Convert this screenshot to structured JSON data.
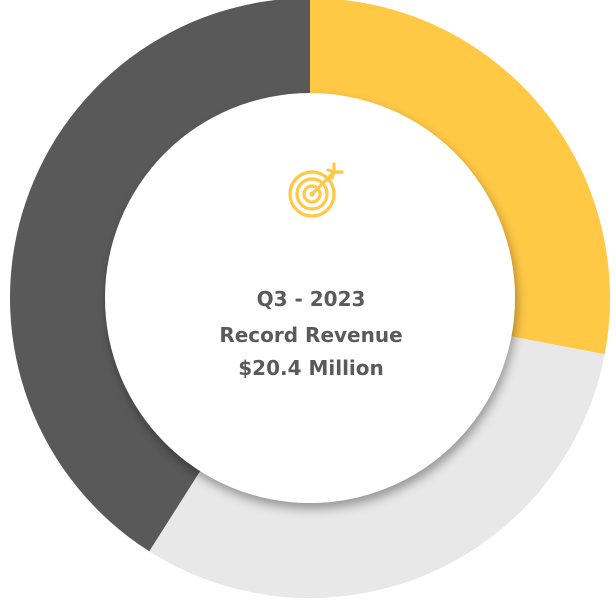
{
  "chart_data": {
    "type": "pie",
    "style": "donut",
    "values": [
      28,
      31,
      41
    ],
    "colors": [
      "#ffc845",
      "#e8e8e8",
      "#595959"
    ],
    "start_angle_deg": 0,
    "direction": "clockwise",
    "center_label": {
      "icon": "target-icon",
      "icon_color": "#ffc845",
      "lines": [
        "Q3 - 2023",
        "Record Revenue",
        "$20.4 Million"
      ],
      "text_color": "#5a5a5a"
    }
  }
}
